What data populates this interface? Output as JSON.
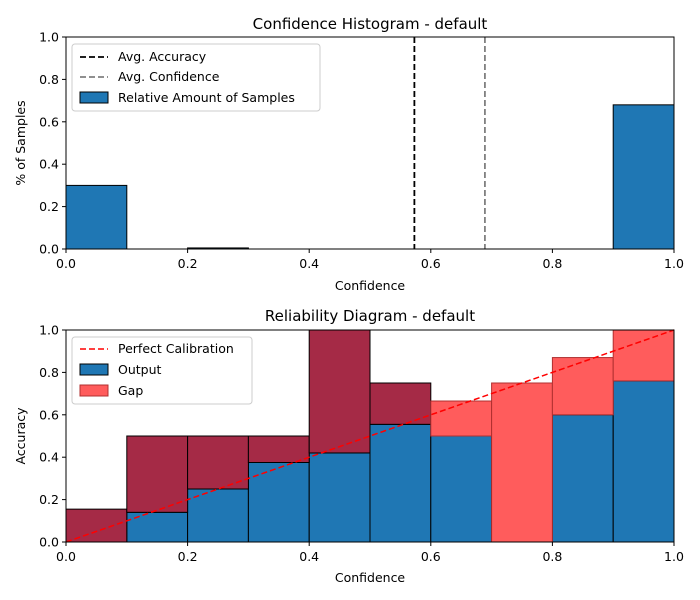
{
  "colors": {
    "output": "#1f77b4",
    "gap": "#ff5c5c",
    "overlap": "#a52a46",
    "avg_accuracy": "#000000",
    "avg_confidence": "#808080",
    "calibration": "#ff0000"
  },
  "chart_data": [
    {
      "type": "bar",
      "title": "Confidence Histogram - default",
      "xlabel": "Confidence",
      "ylabel": "% of Samples",
      "xlim": [
        0,
        1
      ],
      "ylim": [
        0,
        1
      ],
      "xticks": [
        "0.0",
        "0.2",
        "0.4",
        "0.6",
        "0.8",
        "1.0"
      ],
      "yticks": [
        "0.0",
        "0.2",
        "0.4",
        "0.6",
        "0.8",
        "1.0"
      ],
      "bin_edges": [
        0,
        0.1,
        0.2,
        0.3,
        0.4,
        0.5,
        0.6,
        0.7,
        0.8,
        0.9,
        1.0
      ],
      "series": [
        {
          "name": "Relative Amount of Samples",
          "values": [
            0.3,
            0,
            0.005,
            0,
            0,
            0,
            0,
            0,
            0,
            0.68
          ]
        }
      ],
      "vlines": [
        {
          "name": "Avg. Accuracy",
          "x": 0.573,
          "style": "dashed"
        },
        {
          "name": "Avg. Confidence",
          "x": 0.689,
          "style": "dashed"
        }
      ],
      "legend": {
        "position": "upper-left",
        "entries": [
          "Avg. Accuracy",
          "Avg. Confidence",
          "Relative Amount of Samples"
        ]
      }
    },
    {
      "type": "bar",
      "title": "Reliability Diagram - default",
      "xlabel": "Confidence",
      "ylabel": "Accuracy",
      "xlim": [
        0,
        1
      ],
      "ylim": [
        0,
        1
      ],
      "xticks": [
        "0.0",
        "0.2",
        "0.4",
        "0.6",
        "0.8",
        "1.0"
      ],
      "yticks": [
        "0.0",
        "0.2",
        "0.4",
        "0.6",
        "0.8",
        "1.0"
      ],
      "bin_edges": [
        0,
        0.1,
        0.2,
        0.3,
        0.4,
        0.5,
        0.6,
        0.7,
        0.8,
        0.9,
        1.0
      ],
      "series": [
        {
          "name": "Output",
          "values": [
            0,
            0.14,
            0.25,
            0.375,
            0.42,
            0.555,
            0.5,
            0,
            0.6,
            0.76
          ]
        },
        {
          "name": "Gap",
          "tops": [
            0.155,
            0.5,
            0.5,
            0.5,
            1.0,
            0.75,
            0.665,
            0.75,
            0.87,
            1.0
          ]
        }
      ],
      "reference_line": {
        "name": "Perfect Calibration",
        "x": [
          0,
          1
        ],
        "y": [
          0,
          1
        ],
        "style": "dashed"
      },
      "legend": {
        "position": "upper-left",
        "entries": [
          "Perfect Calibration",
          "Output",
          "Gap"
        ]
      }
    }
  ]
}
